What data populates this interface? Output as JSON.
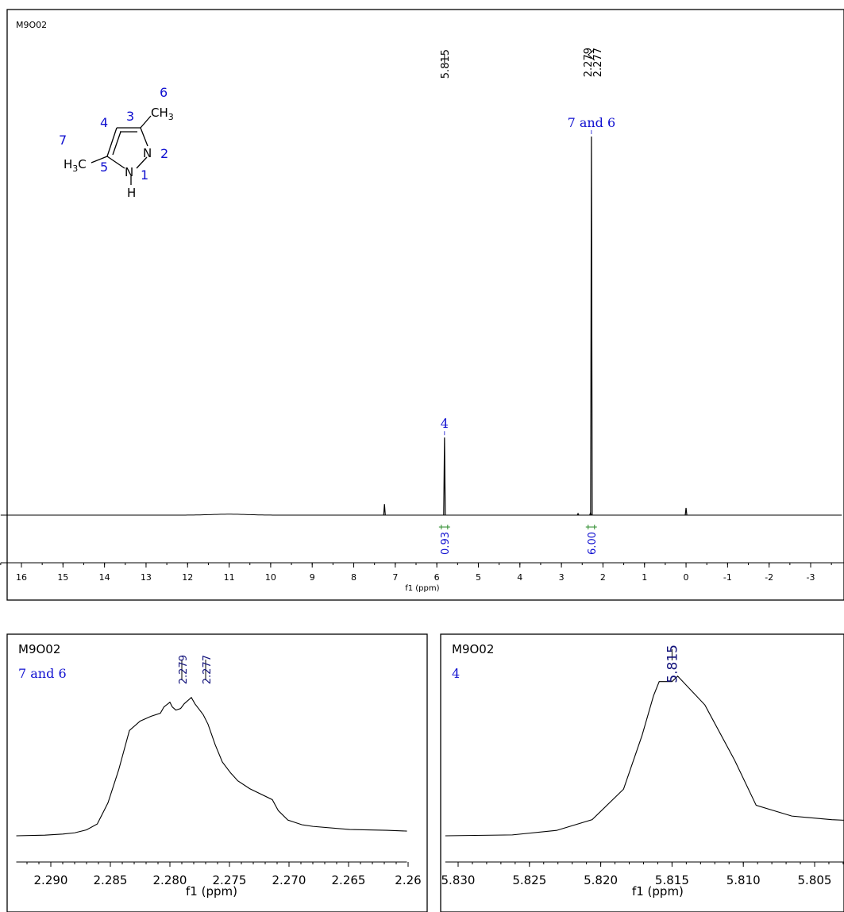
{
  "colors": {
    "axis": "#000000",
    "spectrum": "#000000",
    "annotation": "#1010d0",
    "integral": "#2a8a2a"
  },
  "chart_data": [
    {
      "type": "line",
      "panel": "main",
      "sample": "M9O02",
      "xlabel": "f1 (ppm)",
      "xlim": [
        16.5,
        -3.8
      ],
      "x_ticks": [
        16,
        15,
        14,
        13,
        12,
        11,
        10,
        9,
        8,
        7,
        6,
        5,
        4,
        3,
        2,
        1,
        0,
        -1,
        -2,
        -3
      ],
      "x_tick_labels": [
        "16",
        "15",
        "14",
        "13",
        "12",
        "11",
        "10",
        "9",
        "8",
        "7",
        "6",
        "5",
        "4",
        "3",
        "2",
        "1",
        "0",
        "-1",
        "-2",
        "-3"
      ],
      "peak_labels": [
        {
          "ppm": 5.815,
          "text": "5.815"
        },
        {
          "ppm": 2.279,
          "text": "2.279"
        },
        {
          "ppm": 2.277,
          "text": "2.277"
        }
      ],
      "assignments": [
        {
          "ppm": 5.815,
          "label": "4",
          "height": 0.205
        },
        {
          "ppm": 2.278,
          "label": "7 and 6",
          "height": 1.0
        }
      ],
      "other_peaks": [
        {
          "ppm": 7.26,
          "height": 0.029
        },
        {
          "ppm": 0.0,
          "height": 0.019
        },
        {
          "ppm": 2.3,
          "height": 0.006
        },
        {
          "ppm": 2.6,
          "height": 0.004
        }
      ],
      "integrals": [
        {
          "ppm": 5.815,
          "value": "0.93"
        },
        {
          "ppm": 2.28,
          "value": "6.00"
        }
      ],
      "structure": {
        "numbers": [
          "6",
          "4",
          "3",
          "7",
          "2",
          "5",
          "1"
        ],
        "atoms": {
          "ch3_top": "CH",
          "ch3_top_sub": "3",
          "n2": "N",
          "n1": "N",
          "h": "H",
          "h3c_left": "H",
          "h3c_left_sub": "3",
          "h3c_left_c": "C"
        }
      }
    },
    {
      "type": "line",
      "panel": "zoom-left",
      "sample": "M9O02",
      "assignment": "7 and 6",
      "xlabel": "f1 (ppm)",
      "xlim": [
        2.2929,
        2.2601
      ],
      "x_ticks": [
        2.29,
        2.285,
        2.28,
        2.275,
        2.27,
        2.265,
        2.26
      ],
      "x_tick_labels": [
        "2.290",
        "2.285",
        "2.280",
        "2.275",
        "2.270",
        "2.265",
        "2.26"
      ],
      "peak_labels": [
        {
          "ppm": 2.279,
          "text": "2.279"
        },
        {
          "ppm": 2.277,
          "text": "2.277"
        }
      ],
      "series": [
        {
          "x": [
            2.2929,
            2.2905,
            2.289,
            2.288,
            2.287,
            2.2861,
            2.2852,
            2.2843,
            2.2834,
            2.2825,
            2.2816,
            2.2808,
            2.2805,
            2.28,
            2.2798,
            2.2795,
            2.2791,
            2.2788,
            2.2782,
            2.2779,
            2.2775,
            2.2772,
            2.2768,
            2.2762,
            2.2756,
            2.2749,
            2.2743,
            2.2733,
            2.2714,
            2.2709,
            2.2701,
            2.2689,
            2.268,
            2.2649,
            2.2618,
            2.2601
          ],
          "y": [
            0.0,
            0.004,
            0.011,
            0.019,
            0.038,
            0.075,
            0.21,
            0.42,
            0.67,
            0.73,
            0.76,
            0.78,
            0.82,
            0.85,
            0.82,
            0.8,
            0.81,
            0.84,
            0.88,
            0.84,
            0.8,
            0.77,
            0.71,
            0.58,
            0.47,
            0.4,
            0.35,
            0.3,
            0.23,
            0.16,
            0.1,
            0.07,
            0.06,
            0.04,
            0.035,
            0.03
          ]
        }
      ]
    },
    {
      "type": "line",
      "panel": "zoom-right",
      "sample": "M9O02",
      "assignment": "4",
      "xlabel": "f1 (ppm)",
      "xlim": [
        5.8309,
        5.8011
      ],
      "x_ticks": [
        5.83,
        5.825,
        5.82,
        5.815,
        5.81,
        5.805
      ],
      "x_tick_labels": [
        "5.830",
        "5.825",
        "5.820",
        "5.815",
        "5.810",
        "5.805"
      ],
      "peak_labels": [
        {
          "ppm": 5.815,
          "text": "5.815"
        }
      ],
      "series": [
        {
          "x": [
            5.8309,
            5.8262,
            5.8231,
            5.8206,
            5.8184,
            5.8171,
            5.8163,
            5.8159,
            5.815,
            5.8146,
            5.8127,
            5.8106,
            5.8091,
            5.8066,
            5.8038,
            5.8011
          ],
          "y": [
            0.0,
            0.005,
            0.03,
            0.09,
            0.26,
            0.56,
            0.78,
            0.86,
            0.86,
            0.89,
            0.73,
            0.42,
            0.17,
            0.11,
            0.09,
            0.08
          ]
        }
      ]
    }
  ]
}
